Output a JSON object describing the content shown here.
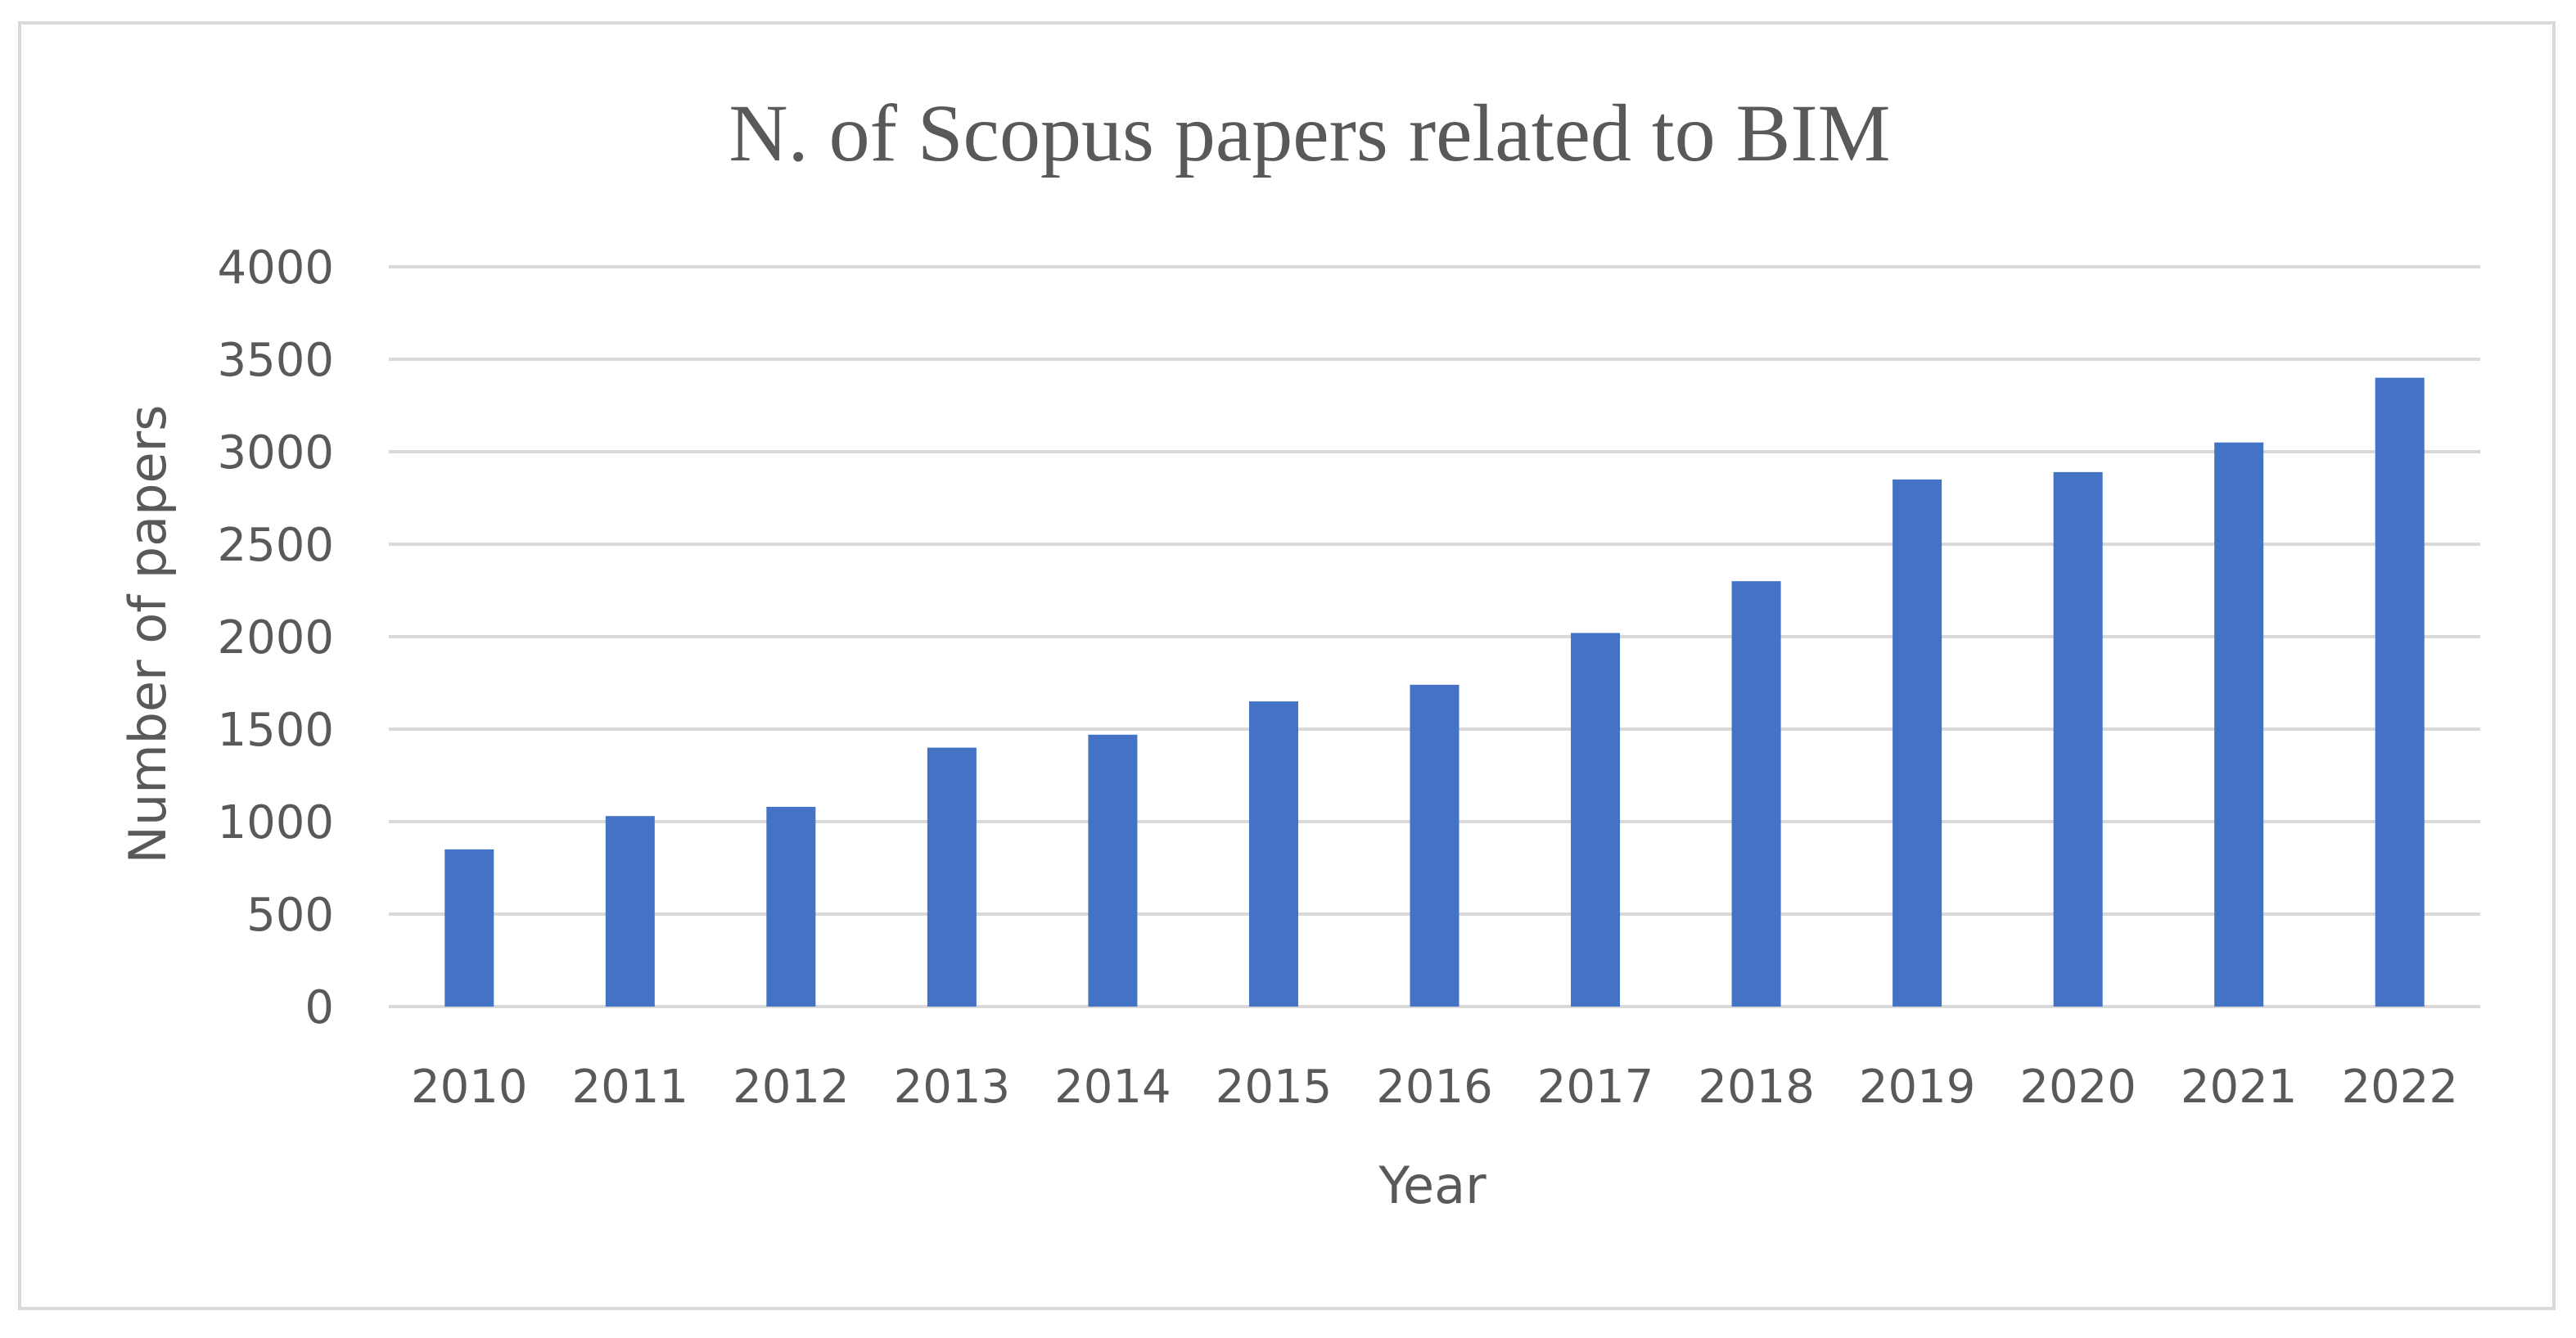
{
  "chart_data": {
    "type": "bar",
    "title": "N. of Scopus papers related to BIM",
    "xlabel": "Year",
    "ylabel": "Number of papers",
    "categories": [
      "2010",
      "2011",
      "2012",
      "2013",
      "2014",
      "2015",
      "2016",
      "2017",
      "2018",
      "2019",
      "2020",
      "2021",
      "2022"
    ],
    "values": [
      850,
      1030,
      1080,
      1400,
      1470,
      1650,
      1740,
      2020,
      2300,
      2850,
      2890,
      3050,
      3400
    ],
    "ylim": [
      0,
      4000
    ],
    "yticks": [
      "0",
      "500",
      "1000",
      "1500",
      "2000",
      "2500",
      "3000",
      "3500",
      "4000"
    ],
    "grid": true,
    "legend": "none",
    "bar_color": "#4472c4"
  }
}
